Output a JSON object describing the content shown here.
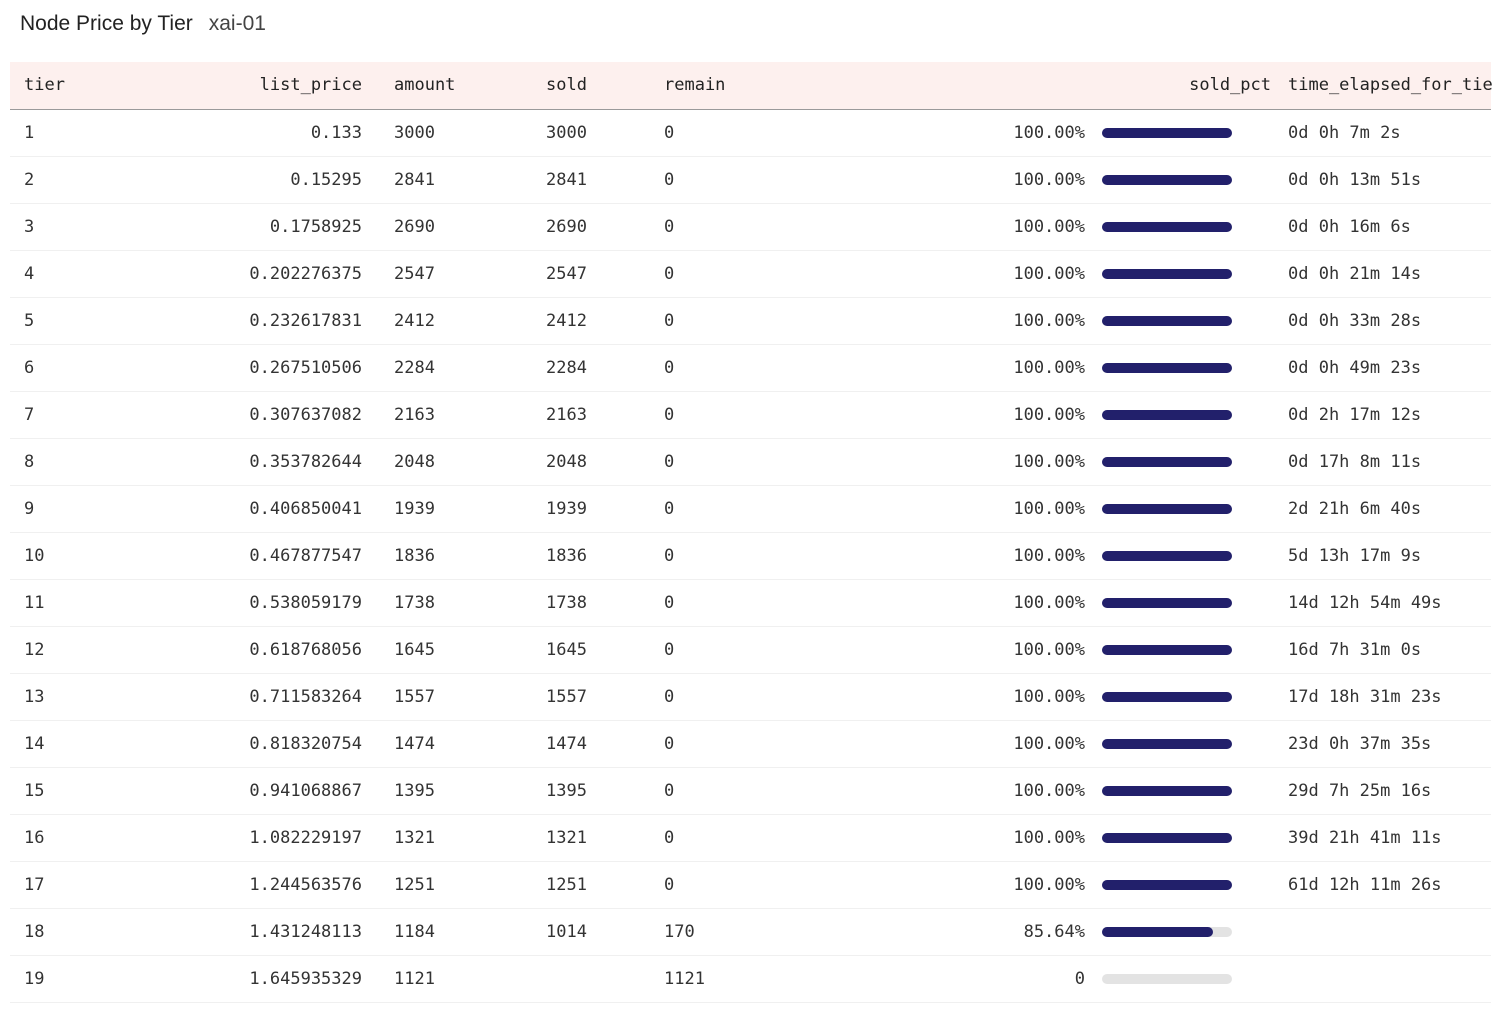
{
  "header": {
    "title": "Node Price by Tier",
    "subtitle": "xai-01"
  },
  "columns": [
    "tier",
    "list_price",
    "amount",
    "sold",
    "remain",
    "sold_pct",
    "time_elapsed_for_tier"
  ],
  "colors": {
    "header_bg": "#fdf0ee",
    "bar_fill": "#22206b",
    "bar_track": "#e3e3e3"
  },
  "rows": [
    {
      "tier": "1",
      "list_price": "0.133",
      "amount": "3000",
      "sold": "3000",
      "remain": "0",
      "sold_pct": "100.00%",
      "fill": 1.0,
      "time": "0d 0h 7m 2s"
    },
    {
      "tier": "2",
      "list_price": "0.15295",
      "amount": "2841",
      "sold": "2841",
      "remain": "0",
      "sold_pct": "100.00%",
      "fill": 1.0,
      "time": "0d 0h 13m 51s"
    },
    {
      "tier": "3",
      "list_price": "0.1758925",
      "amount": "2690",
      "sold": "2690",
      "remain": "0",
      "sold_pct": "100.00%",
      "fill": 1.0,
      "time": "0d 0h 16m 6s"
    },
    {
      "tier": "4",
      "list_price": "0.202276375",
      "amount": "2547",
      "sold": "2547",
      "remain": "0",
      "sold_pct": "100.00%",
      "fill": 1.0,
      "time": "0d 0h 21m 14s"
    },
    {
      "tier": "5",
      "list_price": "0.232617831",
      "amount": "2412",
      "sold": "2412",
      "remain": "0",
      "sold_pct": "100.00%",
      "fill": 1.0,
      "time": "0d 0h 33m 28s"
    },
    {
      "tier": "6",
      "list_price": "0.267510506",
      "amount": "2284",
      "sold": "2284",
      "remain": "0",
      "sold_pct": "100.00%",
      "fill": 1.0,
      "time": "0d 0h 49m 23s"
    },
    {
      "tier": "7",
      "list_price": "0.307637082",
      "amount": "2163",
      "sold": "2163",
      "remain": "0",
      "sold_pct": "100.00%",
      "fill": 1.0,
      "time": "0d 2h 17m 12s"
    },
    {
      "tier": "8",
      "list_price": "0.353782644",
      "amount": "2048",
      "sold": "2048",
      "remain": "0",
      "sold_pct": "100.00%",
      "fill": 1.0,
      "time": "0d 17h 8m 11s"
    },
    {
      "tier": "9",
      "list_price": "0.406850041",
      "amount": "1939",
      "sold": "1939",
      "remain": "0",
      "sold_pct": "100.00%",
      "fill": 1.0,
      "time": "2d 21h 6m 40s"
    },
    {
      "tier": "10",
      "list_price": "0.467877547",
      "amount": "1836",
      "sold": "1836",
      "remain": "0",
      "sold_pct": "100.00%",
      "fill": 1.0,
      "time": "5d 13h 17m 9s"
    },
    {
      "tier": "11",
      "list_price": "0.538059179",
      "amount": "1738",
      "sold": "1738",
      "remain": "0",
      "sold_pct": "100.00%",
      "fill": 1.0,
      "time": "14d 12h 54m 49s"
    },
    {
      "tier": "12",
      "list_price": "0.618768056",
      "amount": "1645",
      "sold": "1645",
      "remain": "0",
      "sold_pct": "100.00%",
      "fill": 1.0,
      "time": "16d 7h 31m 0s"
    },
    {
      "tier": "13",
      "list_price": "0.711583264",
      "amount": "1557",
      "sold": "1557",
      "remain": "0",
      "sold_pct": "100.00%",
      "fill": 1.0,
      "time": "17d 18h 31m 23s"
    },
    {
      "tier": "14",
      "list_price": "0.818320754",
      "amount": "1474",
      "sold": "1474",
      "remain": "0",
      "sold_pct": "100.00%",
      "fill": 1.0,
      "time": "23d 0h 37m 35s"
    },
    {
      "tier": "15",
      "list_price": "0.941068867",
      "amount": "1395",
      "sold": "1395",
      "remain": "0",
      "sold_pct": "100.00%",
      "fill": 1.0,
      "time": "29d 7h 25m 16s"
    },
    {
      "tier": "16",
      "list_price": "1.082229197",
      "amount": "1321",
      "sold": "1321",
      "remain": "0",
      "sold_pct": "100.00%",
      "fill": 1.0,
      "time": "39d 21h 41m 11s"
    },
    {
      "tier": "17",
      "list_price": "1.244563576",
      "amount": "1251",
      "sold": "1251",
      "remain": "0",
      "sold_pct": "100.00%",
      "fill": 1.0,
      "time": "61d 12h 11m 26s"
    },
    {
      "tier": "18",
      "list_price": "1.431248113",
      "amount": "1184",
      "sold": "1014",
      "remain": "170",
      "sold_pct": "85.64%",
      "fill": 0.8564,
      "time": ""
    },
    {
      "tier": "19",
      "list_price": "1.645935329",
      "amount": "1121",
      "sold": "",
      "remain": "1121",
      "sold_pct": "0",
      "fill": 0.0,
      "time": ""
    }
  ]
}
